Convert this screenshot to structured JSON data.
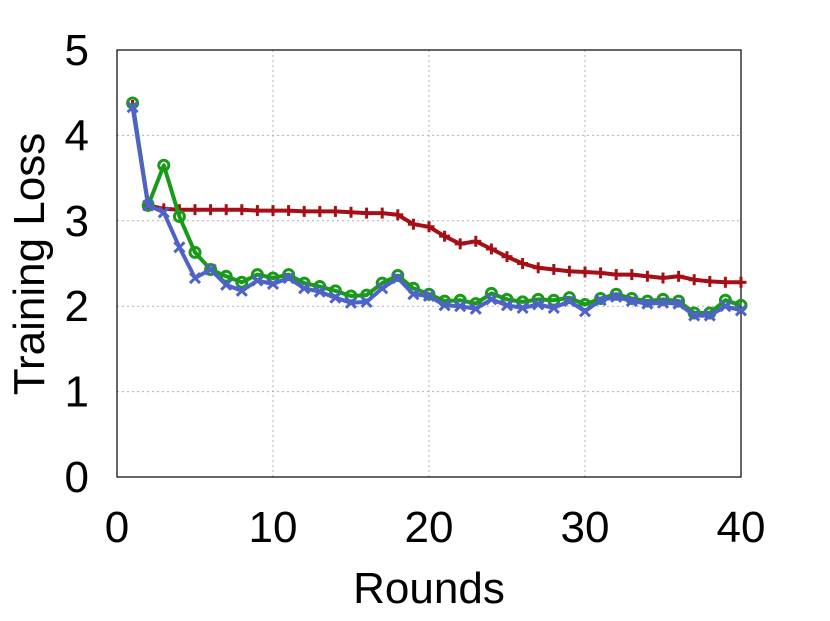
{
  "chart_data": {
    "type": "line",
    "title": "",
    "xlabel": "Rounds",
    "ylabel": "Training Loss",
    "xlim": [
      0,
      40
    ],
    "ylim": [
      0,
      5
    ],
    "xticks": [
      0,
      10,
      20,
      30,
      40
    ],
    "yticks": [
      0,
      1,
      2,
      3,
      4,
      5
    ],
    "grid": true,
    "legend": "none",
    "x": [
      1,
      2,
      3,
      4,
      5,
      6,
      7,
      8,
      9,
      10,
      11,
      12,
      13,
      14,
      15,
      16,
      17,
      18,
      19,
      20,
      21,
      22,
      23,
      24,
      25,
      26,
      27,
      28,
      29,
      30,
      31,
      32,
      33,
      34,
      35,
      36,
      37,
      38,
      39,
      40
    ],
    "series": [
      {
        "color": "#a50f15",
        "marker": "plus",
        "values": [
          4.35,
          3.18,
          3.14,
          3.13,
          3.13,
          3.13,
          3.13,
          3.13,
          3.12,
          3.12,
          3.12,
          3.11,
          3.11,
          3.11,
          3.1,
          3.09,
          3.09,
          3.07,
          2.96,
          2.93,
          2.82,
          2.73,
          2.76,
          2.67,
          2.58,
          2.5,
          2.45,
          2.43,
          2.41,
          2.4,
          2.39,
          2.37,
          2.37,
          2.35,
          2.33,
          2.35,
          2.31,
          2.29,
          2.28,
          2.28
        ]
      },
      {
        "color": "#1a9a1a",
        "marker": "circle",
        "values": [
          4.38,
          3.18,
          3.65,
          3.05,
          2.63,
          2.43,
          2.35,
          2.28,
          2.37,
          2.33,
          2.37,
          2.27,
          2.23,
          2.18,
          2.12,
          2.13,
          2.27,
          2.36,
          2.21,
          2.14,
          2.06,
          2.07,
          2.03,
          2.15,
          2.08,
          2.05,
          2.08,
          2.07,
          2.1,
          2.02,
          2.09,
          2.14,
          2.09,
          2.06,
          2.08,
          2.06,
          1.92,
          1.92,
          2.07,
          2.01
        ]
      },
      {
        "color": "#4f62c9",
        "marker": "x",
        "values": [
          4.33,
          3.18,
          3.1,
          2.69,
          2.33,
          2.43,
          2.25,
          2.18,
          2.3,
          2.26,
          2.33,
          2.21,
          2.17,
          2.1,
          2.04,
          2.05,
          2.21,
          2.33,
          2.14,
          2.12,
          2.01,
          2.0,
          1.97,
          2.08,
          2.01,
          1.98,
          2.02,
          1.98,
          2.06,
          1.94,
          2.07,
          2.11,
          2.06,
          2.03,
          2.04,
          2.03,
          1.89,
          1.89,
          2.0,
          1.95
        ]
      }
    ]
  }
}
